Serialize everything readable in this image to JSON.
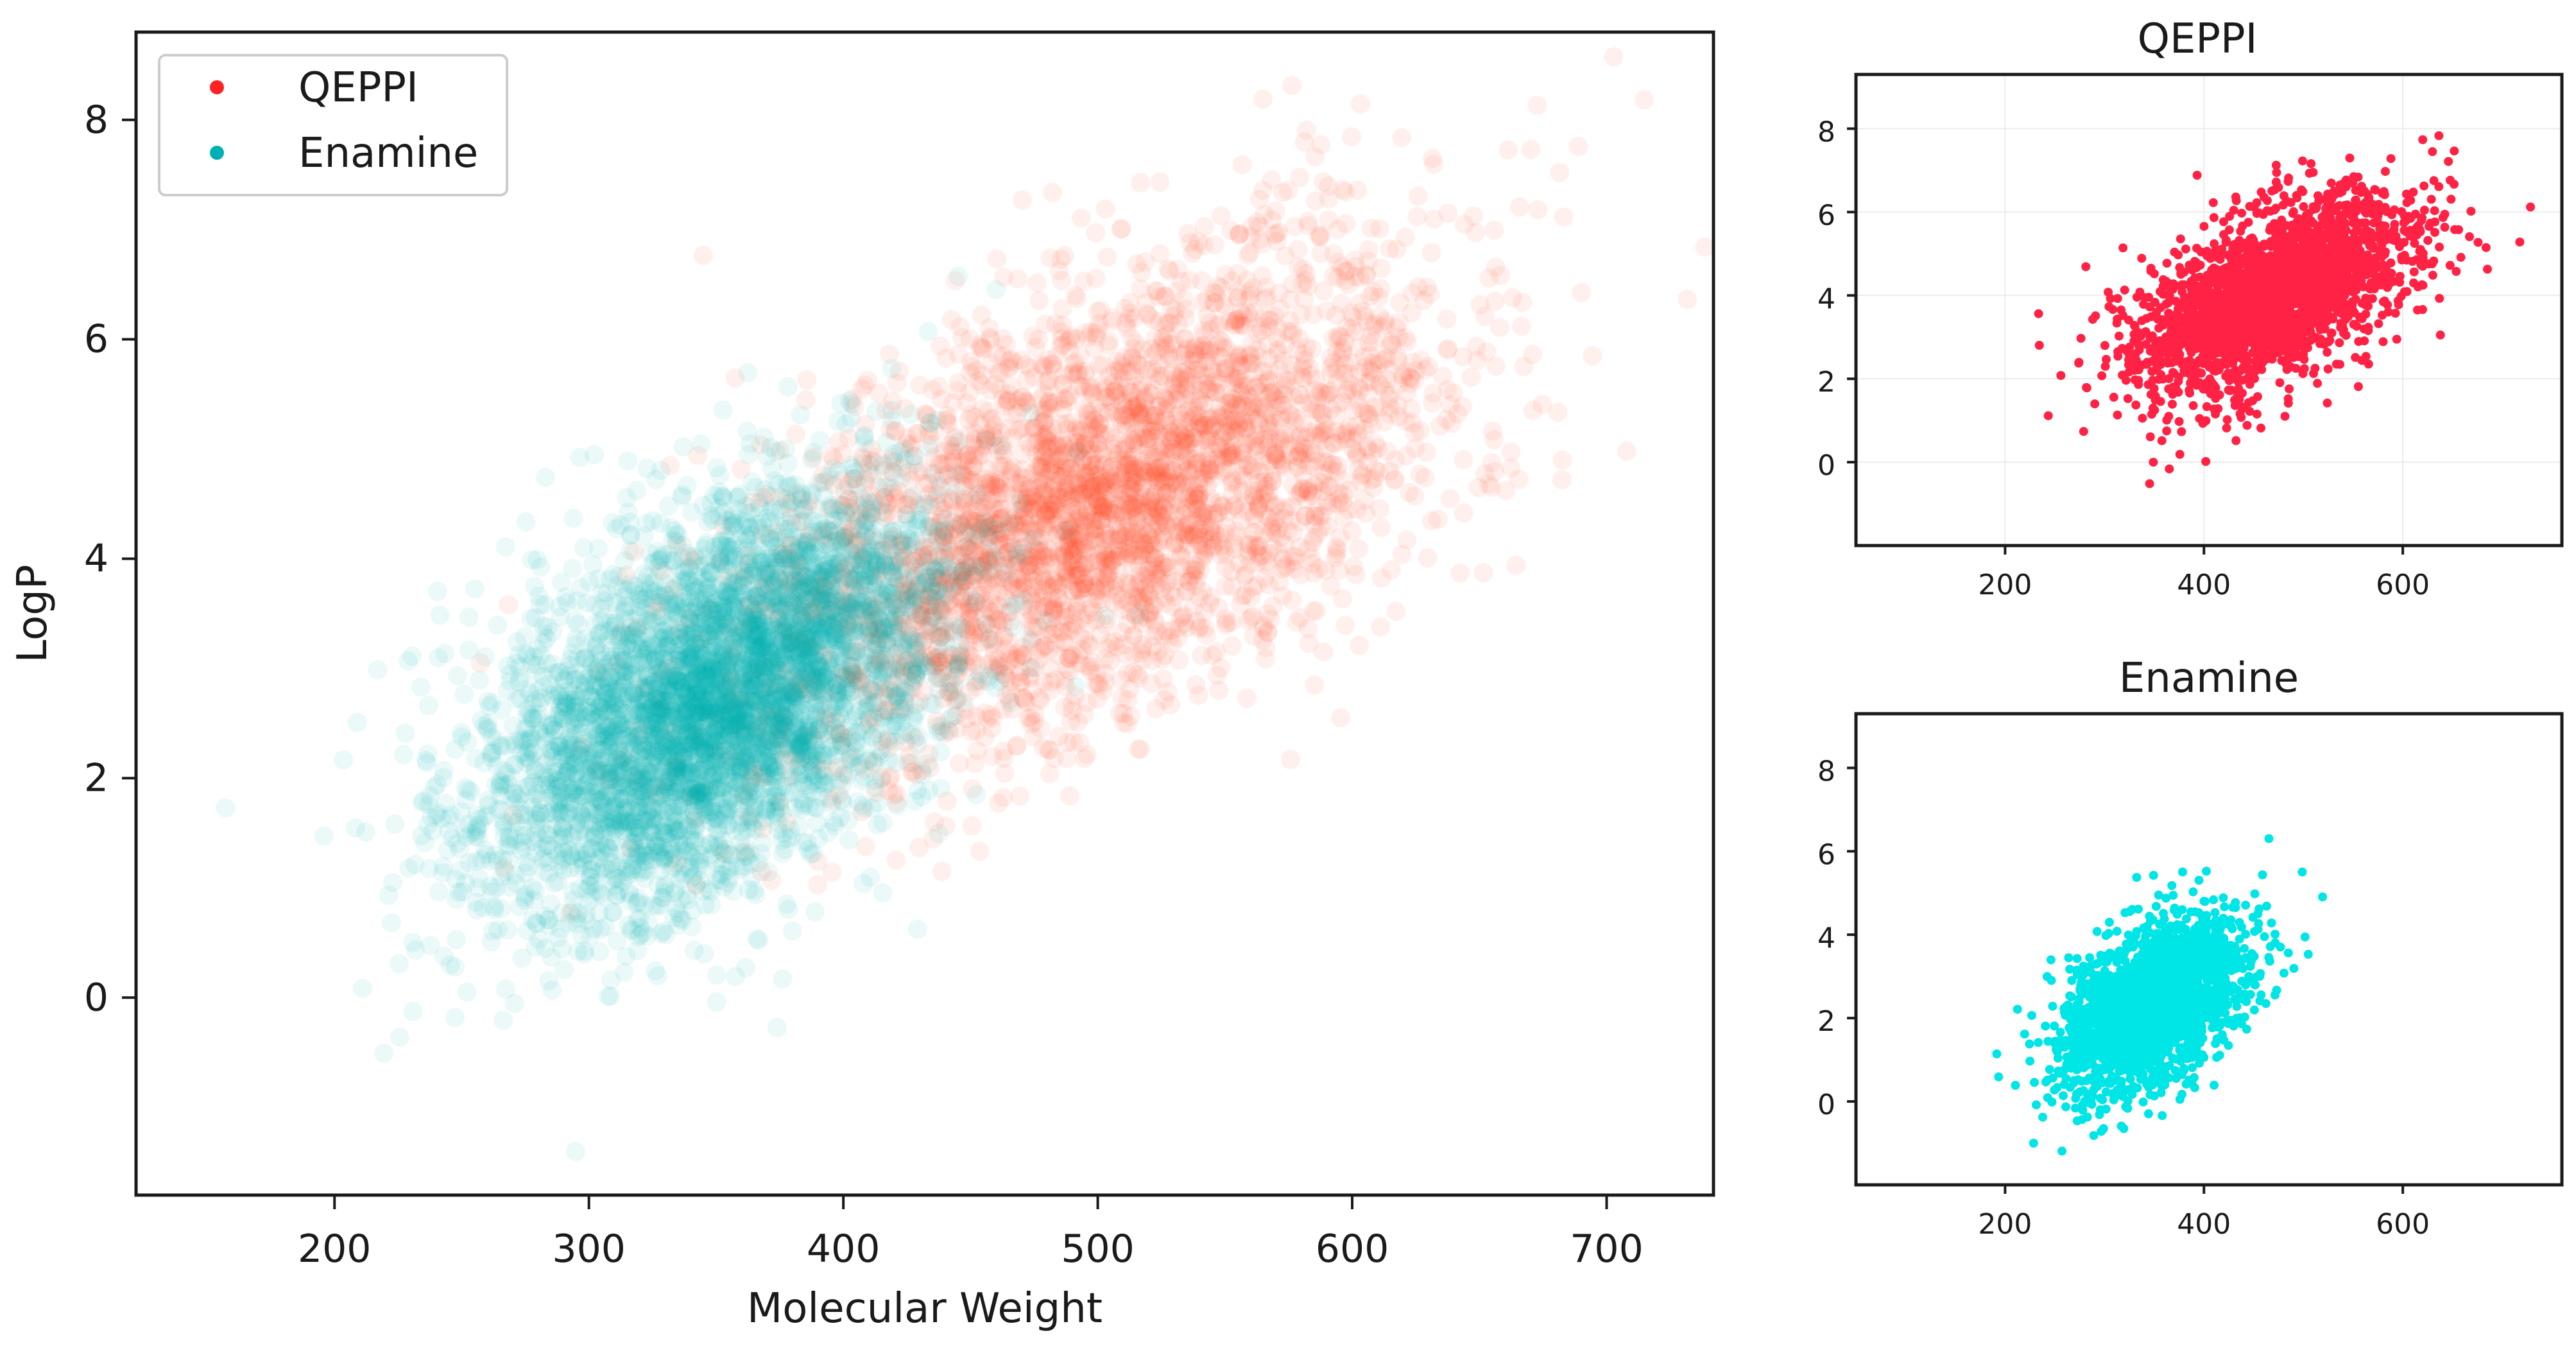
{
  "chart_data": [
    {
      "id": "main",
      "type": "scatter",
      "title": "",
      "xlabel": "Molecular Weight",
      "ylabel": "LogP",
      "xlim": [
        122,
        742
      ],
      "ylim": [
        -1.8,
        8.8
      ],
      "xticks": [
        200,
        300,
        400,
        500,
        600,
        700
      ],
      "yticks": [
        0,
        2,
        4,
        6,
        8
      ],
      "grid": false,
      "legend": {
        "placement": "top-left",
        "entries": [
          "QEPPI",
          "Enamine"
        ]
      },
      "series": [
        {
          "name": "QEPPI",
          "color": "#ff3a1c",
          "opacity": 0.08,
          "cluster": {
            "center_mw": 500,
            "center_logp": 4.5,
            "sd_mw": 68,
            "sd_logp": 1.15,
            "corr": 0.55
          },
          "n_points": 3600
        },
        {
          "name": "Enamine",
          "color": "#00b0b4",
          "opacity": 0.08,
          "cluster": {
            "center_mw": 350,
            "center_logp": 2.7,
            "sd_mw": 45,
            "sd_logp": 0.95,
            "corr": 0.5
          },
          "n_points": 4800
        }
      ]
    },
    {
      "id": "qeppi",
      "type": "scatter",
      "title": "QEPPI",
      "xlabel": "",
      "ylabel": "",
      "xlim": [
        50,
        760
      ],
      "ylim": [
        -2,
        9.3
      ],
      "xticks": [
        200,
        400,
        600
      ],
      "yticks": [
        0,
        2,
        4,
        6,
        8
      ],
      "grid": true,
      "series": [
        {
          "name": "",
          "color": "#ff2244",
          "opacity": 1,
          "cluster": {
            "center_mw": 470,
            "center_logp": 4.0,
            "sd_mw": 70,
            "sd_logp": 1.2,
            "corr": 0.55
          },
          "n_points": 2400
        }
      ]
    },
    {
      "id": "enamine",
      "type": "scatter",
      "title": "Enamine",
      "xlabel": "",
      "ylabel": "",
      "xlim": [
        50,
        760
      ],
      "ylim": [
        -2,
        9.3
      ],
      "xticks": [
        200,
        400,
        600
      ],
      "yticks": [
        0,
        2,
        4,
        6,
        8
      ],
      "grid": false,
      "series": [
        {
          "name": "",
          "color": "#00e5e5",
          "opacity": 1,
          "cluster": {
            "center_mw": 350,
            "center_logp": 2.3,
            "sd_mw": 45,
            "sd_logp": 1.0,
            "corr": 0.45
          },
          "n_points": 2400
        }
      ]
    }
  ]
}
